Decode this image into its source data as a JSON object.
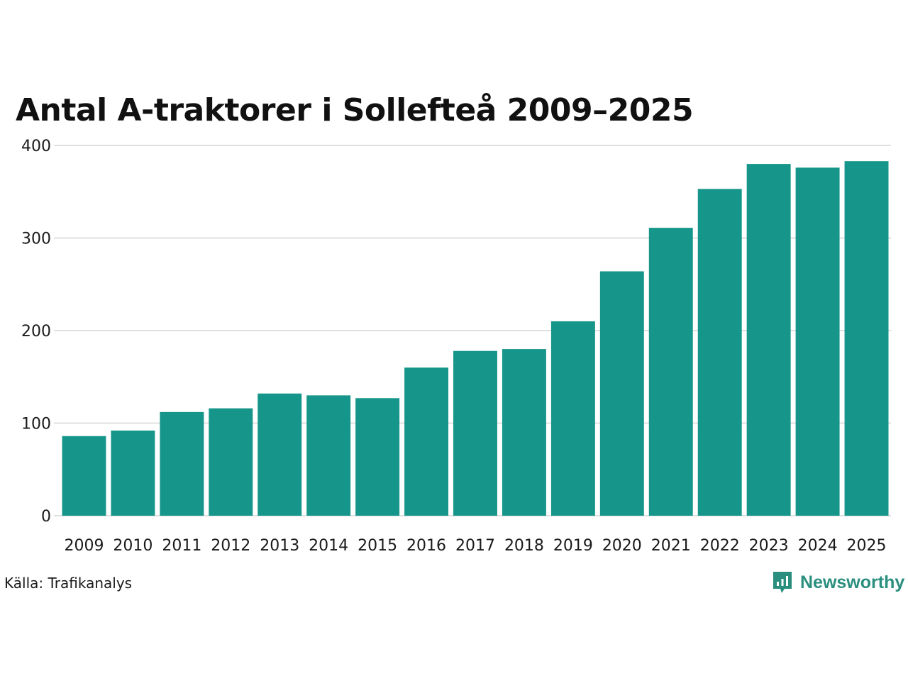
{
  "chart_data": {
    "type": "bar",
    "title": "Antal A-traktorer i Sollefteå 2009–2025",
    "categories": [
      "2009",
      "2010",
      "2011",
      "2012",
      "2013",
      "2014",
      "2015",
      "2016",
      "2017",
      "2018",
      "2019",
      "2020",
      "2021",
      "2022",
      "2023",
      "2024",
      "2025"
    ],
    "values": [
      86,
      92,
      112,
      116,
      132,
      130,
      127,
      160,
      178,
      180,
      210,
      264,
      311,
      353,
      380,
      376,
      383
    ],
    "ylim": [
      0,
      400
    ],
    "yticks": [
      0,
      100,
      200,
      300,
      400
    ],
    "xlabel": "",
    "ylabel": "",
    "grid": true,
    "bar_color": "#16968a",
    "grid_color": "#e0e0e0"
  },
  "footer": {
    "source": "Källa: Trafikanalys",
    "brand": "Newsworthy",
    "brand_icon": "newsworthy-logo-icon",
    "brand_color": "#2a8f7e"
  }
}
